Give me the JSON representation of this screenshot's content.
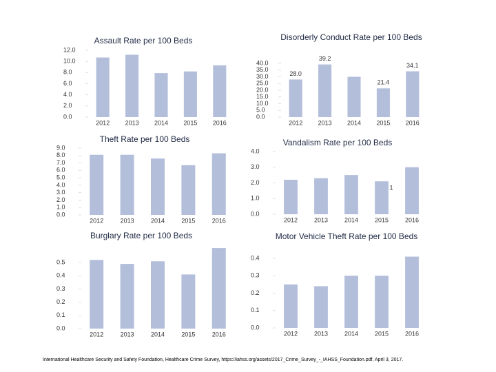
{
  "chart_data": [
    {
      "type": "bar",
      "title": "Assault Rate per 100 Beds",
      "categories": [
        "2012",
        "2013",
        "2014",
        "2015",
        "2016"
      ],
      "values": [
        10.7,
        11.2,
        7.9,
        8.2,
        9.3
      ],
      "color": "#b3bedb",
      "ylim": [
        0,
        12
      ],
      "yticks": [
        {
          "value": 0,
          "label": "0.0"
        },
        {
          "value": 2,
          "label": "2.0"
        },
        {
          "value": 4,
          "label": "4.0"
        },
        {
          "value": 6,
          "label": "6.0"
        },
        {
          "value": 8,
          "label": "8.0"
        },
        {
          "value": 10,
          "label": "10.0"
        },
        {
          "value": 12,
          "label": "12.0"
        }
      ]
    },
    {
      "type": "bar",
      "title": "Disorderly Conduct Rate per 100 Beds",
      "categories": [
        "2012",
        "2013",
        "2014",
        "2015",
        "2016"
      ],
      "values": [
        28.0,
        39.2,
        30,
        21.4,
        34.1
      ],
      "value_labels": [
        "28.0",
        "39.2",
        null,
        "21.4",
        "34.1"
      ],
      "color": "#b3bedb",
      "ylim": [
        0,
        40
      ],
      "yticks": [
        {
          "value": 0,
          "label": "0.0"
        },
        {
          "value": 5,
          "label": "5.0"
        },
        {
          "value": 10,
          "label": "10.0"
        },
        {
          "value": 15,
          "label": "15.0"
        },
        {
          "value": 20,
          "label": "20.0"
        },
        {
          "value": 25,
          "label": "25.0"
        },
        {
          "value": 30,
          "label": "30.0"
        },
        {
          "value": 35,
          "label": "35.0"
        },
        {
          "value": 40,
          "label": "40.0"
        }
      ]
    },
    {
      "type": "bar",
      "title": "Theft Rate per 100 Beds",
      "categories": [
        "2012",
        "2013",
        "2014",
        "2015",
        "2016"
      ],
      "values": [
        8.1,
        8.1,
        7.6,
        6.7,
        8.3
      ],
      "color": "#b3bedb",
      "ylim": [
        0,
        9
      ],
      "yticks": [
        {
          "value": 0,
          "label": "0.0"
        },
        {
          "value": 1,
          "label": "1.0"
        },
        {
          "value": 2,
          "label": "2.0"
        },
        {
          "value": 3,
          "label": "3.0"
        },
        {
          "value": 4,
          "label": "4.0"
        },
        {
          "value": 5,
          "label": "5.0"
        },
        {
          "value": 6,
          "label": "6.0"
        },
        {
          "value": 7,
          "label": "7.0"
        },
        {
          "value": 8,
          "label": "8.0"
        },
        {
          "value": 9,
          "label": "9.0"
        }
      ]
    },
    {
      "type": "bar",
      "title": "Vandalism Rate per 100 Beds",
      "categories": [
        "2012",
        "2013",
        "2014",
        "2015",
        "2016"
      ],
      "values": [
        2.2,
        2.3,
        2.5,
        2.1,
        3.0
      ],
      "color": "#b3bedb",
      "annotation": "1",
      "ylim": [
        0,
        4
      ],
      "yticks": [
        {
          "value": 0,
          "label": "0.0"
        },
        {
          "value": 1,
          "label": "1.0"
        },
        {
          "value": 2,
          "label": "2.0"
        },
        {
          "value": 3,
          "label": "3.0"
        },
        {
          "value": 4,
          "label": "4.0"
        }
      ]
    },
    {
      "type": "bar",
      "title": "Burglary Rate per 100 Beds",
      "categories": [
        "2012",
        "2013",
        "2014",
        "2015",
        "2016"
      ],
      "values": [
        0.52,
        0.49,
        0.51,
        0.41,
        0.61
      ],
      "color": "#b3bedb",
      "ylim": [
        0,
        0.6
      ],
      "yticks": [
        {
          "value": 0,
          "label": "0.0"
        },
        0.1,
        0.2,
        0.3,
        0.4,
        0.5
      ]
    },
    {
      "type": "bar",
      "title": "Motor Vehicle Theft Rate per 100 Beds",
      "categories": [
        "2012",
        "2013",
        "2014",
        "2015",
        "2016"
      ],
      "values": [
        0.25,
        0.24,
        0.3,
        0.3,
        0.41
      ],
      "color": "#b3bedb",
      "ylim": [
        0,
        0.42
      ],
      "yticks": [
        {
          "value": 0,
          "label": "0.0"
        },
        0.1,
        0.2,
        0.3,
        0.4
      ]
    }
  ],
  "footer": "International Healthcare Security and Safety Foundation, Healthcare Crime Survey, https://iahss.org/assets/2017_Crime_Survey_-_IAHSS_Foundation.pdf, April 3, 2017."
}
